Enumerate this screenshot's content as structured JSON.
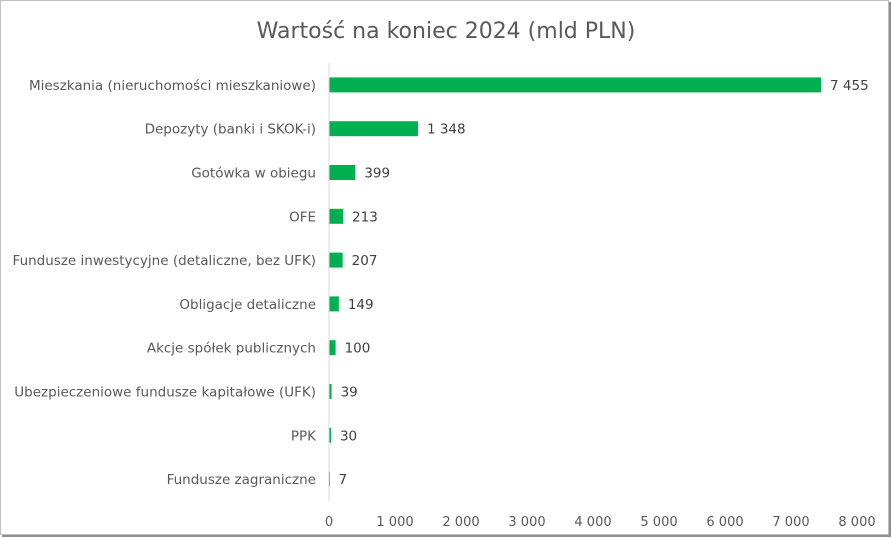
{
  "chart_data": {
    "type": "bar",
    "orientation": "horizontal",
    "title": "Wartość na koniec 2024 (mld PLN)",
    "categories": [
      "Mieszkania (nieruchomości mieszkaniowe)",
      "Depozyty (banki i SKOK-i)",
      "Gotówka w obiegu",
      "OFE",
      "Fundusze inwestycyjne (detaliczne, bez UFK)",
      "Obligacje detaliczne",
      "Akcje spółek publicznych",
      "Ubezpieczeniowe fundusze kapitałowe (UFK)",
      "PPK",
      "Fundusze zagraniczne"
    ],
    "values": [
      7455,
      1348,
      399,
      213,
      207,
      149,
      100,
      39,
      30,
      7
    ],
    "value_labels": [
      "7 455",
      "1 348",
      "399",
      "213",
      "207",
      "149",
      "100",
      "39",
      "30",
      "7"
    ],
    "xlim": [
      0,
      8000
    ],
    "x_ticks": [
      0,
      1000,
      2000,
      3000,
      4000,
      5000,
      6000,
      7000,
      8000
    ],
    "x_tick_labels": [
      "0",
      "1 000",
      "2 000",
      "3 000",
      "4 000",
      "5 000",
      "6 000",
      "7 000",
      "8 000"
    ],
    "grid": false,
    "legend": "none",
    "bar_color": "#00b050"
  }
}
